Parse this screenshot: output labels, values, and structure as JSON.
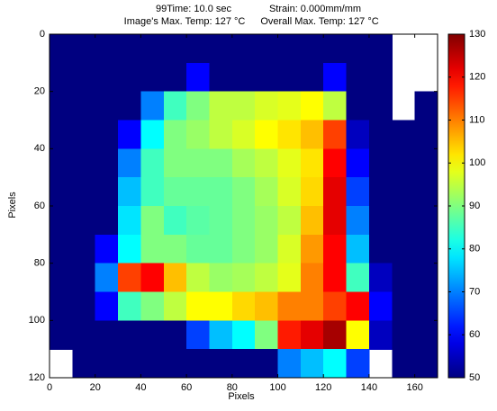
{
  "chart_data": {
    "type": "heatmap",
    "title_lines": [
      [
        "99Time: 10.0 sec",
        "Strain: 0.000mm/mm"
      ],
      [
        "Image's Max. Temp: 127 °C",
        "Overall Max. Temp: 127 °C"
      ]
    ],
    "x_label": "Pixels",
    "y_label": "Pixels",
    "xlim": [
      0,
      170
    ],
    "xticks": [
      0,
      20,
      40,
      60,
      80,
      100,
      120,
      140,
      160
    ],
    "ylim": [
      0,
      120
    ],
    "yticks": [
      0,
      20,
      40,
      60,
      80,
      100,
      120
    ],
    "y_direction": "reverse",
    "colormap": "jet",
    "clim": [
      50,
      130
    ],
    "colorbar_ticks": [
      50,
      60,
      70,
      80,
      90,
      100,
      110,
      120,
      130
    ],
    "matrix": [
      [
        50,
        50,
        50,
        50,
        50,
        50,
        50,
        50,
        50,
        50,
        50,
        50,
        50,
        50,
        50,
        null,
        null
      ],
      [
        50,
        50,
        50,
        50,
        50,
        50,
        60,
        50,
        50,
        50,
        50,
        50,
        60,
        50,
        50,
        null,
        null
      ],
      [
        50,
        50,
        50,
        50,
        70,
        85,
        90,
        95,
        95,
        97,
        98,
        100,
        95,
        50,
        50,
        null,
        50
      ],
      [
        50,
        50,
        50,
        60,
        80,
        90,
        92,
        95,
        97,
        100,
        102,
        105,
        115,
        55,
        50,
        50,
        50
      ],
      [
        50,
        50,
        50,
        70,
        85,
        90,
        90,
        90,
        93,
        95,
        98,
        102,
        120,
        60,
        50,
        50,
        50
      ],
      [
        50,
        50,
        50,
        75,
        85,
        88,
        88,
        88,
        90,
        93,
        97,
        103,
        122,
        65,
        50,
        50,
        50
      ],
      [
        50,
        50,
        50,
        78,
        90,
        85,
        87,
        88,
        90,
        92,
        95,
        105,
        122,
        70,
        50,
        50,
        50
      ],
      [
        50,
        50,
        60,
        80,
        90,
        90,
        88,
        88,
        90,
        92,
        97,
        108,
        120,
        75,
        50,
        50,
        50
      ],
      [
        50,
        50,
        70,
        115,
        120,
        105,
        95,
        92,
        93,
        95,
        98,
        110,
        120,
        85,
        55,
        50,
        50
      ],
      [
        50,
        50,
        60,
        85,
        90,
        95,
        100,
        100,
        103,
        105,
        110,
        110,
        115,
        120,
        60,
        50,
        50
      ],
      [
        50,
        50,
        50,
        50,
        50,
        50,
        65,
        75,
        80,
        90,
        118,
        122,
        127,
        100,
        55,
        50,
        50
      ],
      [
        null,
        50,
        50,
        50,
        50,
        50,
        50,
        50,
        50,
        50,
        70,
        75,
        80,
        65,
        null,
        50,
        50
      ]
    ]
  }
}
